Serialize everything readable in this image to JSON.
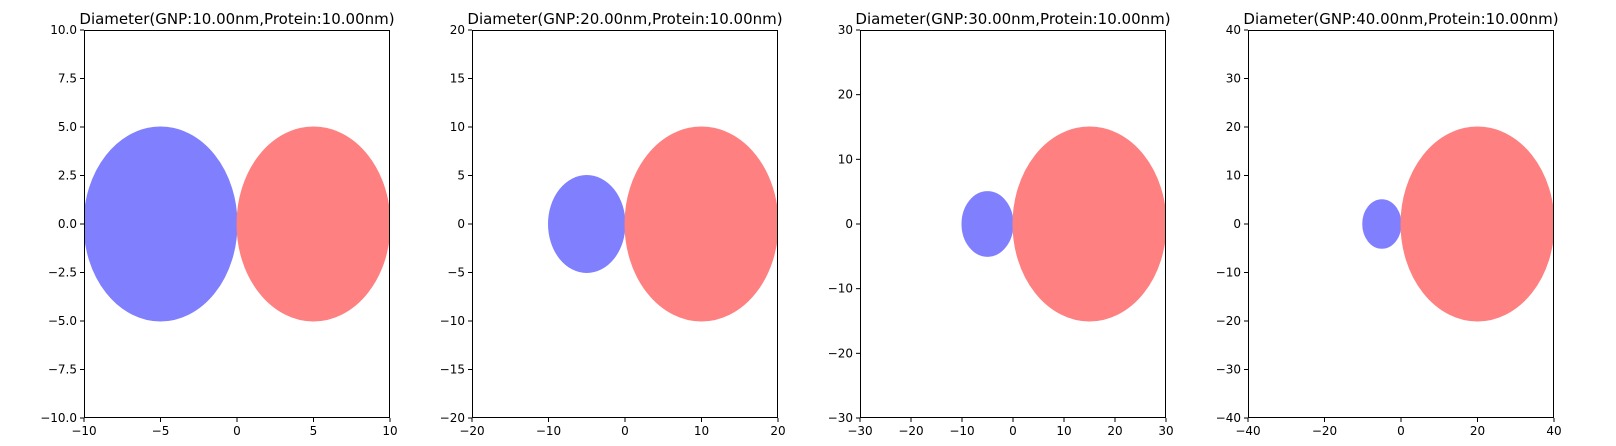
{
  "chart_data": [
    {
      "type": "scatter",
      "title": "Diameter(GNP:10.00nm,Protein:10.00nm)",
      "xlim": [
        -10,
        10
      ],
      "ylim": [
        -10,
        10
      ],
      "xticks": [
        -10,
        -5,
        0,
        5,
        10
      ],
      "xtick_labels": [
        "−10",
        "−5",
        "0",
        "5",
        "10"
      ],
      "yticks": [
        -10,
        -7.5,
        -5,
        -2.5,
        0,
        2.5,
        5,
        7.5,
        10
      ],
      "ytick_labels": [
        "−10.0",
        "−7.5",
        "−5.0",
        "−2.5",
        "0.0",
        "2.5",
        "5.0",
        "7.5",
        "10.0"
      ],
      "circles": [
        {
          "name": "GNP",
          "center": [
            -5,
            0
          ],
          "diameter": 10,
          "color": "#8080ff"
        },
        {
          "name": "Protein",
          "center": [
            5,
            0
          ],
          "diameter": 10,
          "color": "#ff8080"
        }
      ],
      "grid": false
    },
    {
      "type": "scatter",
      "title": "Diameter(GNP:20.00nm,Protein:10.00nm)",
      "xlim": [
        -20,
        20
      ],
      "ylim": [
        -20,
        20
      ],
      "xticks": [
        -20,
        -10,
        0,
        10,
        20
      ],
      "xtick_labels": [
        "−20",
        "−10",
        "0",
        "10",
        "20"
      ],
      "yticks": [
        -20,
        -15,
        -10,
        -5,
        0,
        5,
        10,
        15,
        20
      ],
      "ytick_labels": [
        "−20",
        "−15",
        "−10",
        "−5",
        "0",
        "5",
        "10",
        "15",
        "20"
      ],
      "circles": [
        {
          "name": "Protein",
          "center": [
            -5,
            0
          ],
          "diameter": 10,
          "color": "#8080ff"
        },
        {
          "name": "GNP",
          "center": [
            10,
            0
          ],
          "diameter": 20,
          "color": "#ff8080"
        }
      ],
      "grid": false
    },
    {
      "type": "scatter",
      "title": "Diameter(GNP:30.00nm,Protein:10.00nm)",
      "xlim": [
        -30,
        30
      ],
      "ylim": [
        -30,
        30
      ],
      "xticks": [
        -30,
        -20,
        -10,
        0,
        10,
        20,
        30
      ],
      "xtick_labels": [
        "−30",
        "−20",
        "−10",
        "0",
        "10",
        "20",
        "30"
      ],
      "yticks": [
        -30,
        -20,
        -10,
        0,
        10,
        20,
        30
      ],
      "ytick_labels": [
        "−30",
        "−20",
        "−10",
        "0",
        "10",
        "20",
        "30"
      ],
      "circles": [
        {
          "name": "Protein",
          "center": [
            -5,
            0
          ],
          "diameter": 10,
          "color": "#8080ff"
        },
        {
          "name": "GNP",
          "center": [
            15,
            0
          ],
          "diameter": 30,
          "color": "#ff8080"
        }
      ],
      "grid": false
    },
    {
      "type": "scatter",
      "title": "Diameter(GNP:40.00nm,Protein:10.00nm)",
      "xlim": [
        -40,
        40
      ],
      "ylim": [
        -40,
        40
      ],
      "xticks": [
        -40,
        -20,
        0,
        20,
        40
      ],
      "xtick_labels": [
        "−40",
        "−20",
        "0",
        "20",
        "40"
      ],
      "yticks": [
        -40,
        -30,
        -20,
        -10,
        0,
        10,
        20,
        30,
        40
      ],
      "ytick_labels": [
        "−40",
        "−30",
        "−20",
        "−10",
        "0",
        "10",
        "20",
        "30",
        "40"
      ],
      "circles": [
        {
          "name": "Protein",
          "center": [
            -5,
            0
          ],
          "diameter": 10,
          "color": "#8080ff"
        },
        {
          "name": "GNP",
          "center": [
            20,
            0
          ],
          "diameter": 40,
          "color": "#ff8080"
        }
      ],
      "grid": false
    }
  ]
}
